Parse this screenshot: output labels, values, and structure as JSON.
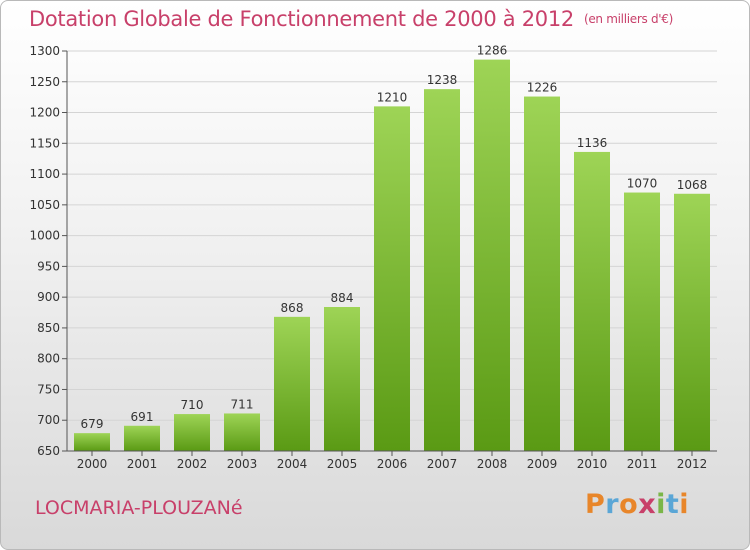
{
  "title": "Dotation Globale de Fonctionnement de 2000 à 2012",
  "unit": "(en milliers d'€)",
  "commune": "LOCMARIA-PLOUZANé",
  "logo": {
    "text": "Proxiti",
    "colors": [
      "#e8862a",
      "#5aa6d6",
      "#e8862a",
      "#c8406a",
      "#7ab648",
      "#5aa6d6",
      "#e8862a"
    ]
  },
  "colors": {
    "accent": "#c8406a",
    "bar_top": "#9ed456",
    "bar_bottom": "#5a9a14"
  },
  "chart_data": {
    "type": "bar",
    "categories": [
      "2000",
      "2001",
      "2002",
      "2003",
      "2004",
      "2005",
      "2006",
      "2007",
      "2008",
      "2009",
      "2010",
      "2011",
      "2012"
    ],
    "values": [
      679,
      691,
      710,
      711,
      868,
      884,
      1210,
      1238,
      1286,
      1226,
      1136,
      1070,
      1068
    ],
    "ylim": [
      650,
      1300
    ],
    "yticks": [
      650,
      700,
      750,
      800,
      850,
      900,
      950,
      1000,
      1050,
      1100,
      1150,
      1200,
      1250,
      1300
    ],
    "grid": true,
    "xlabel": "",
    "ylabel": ""
  }
}
